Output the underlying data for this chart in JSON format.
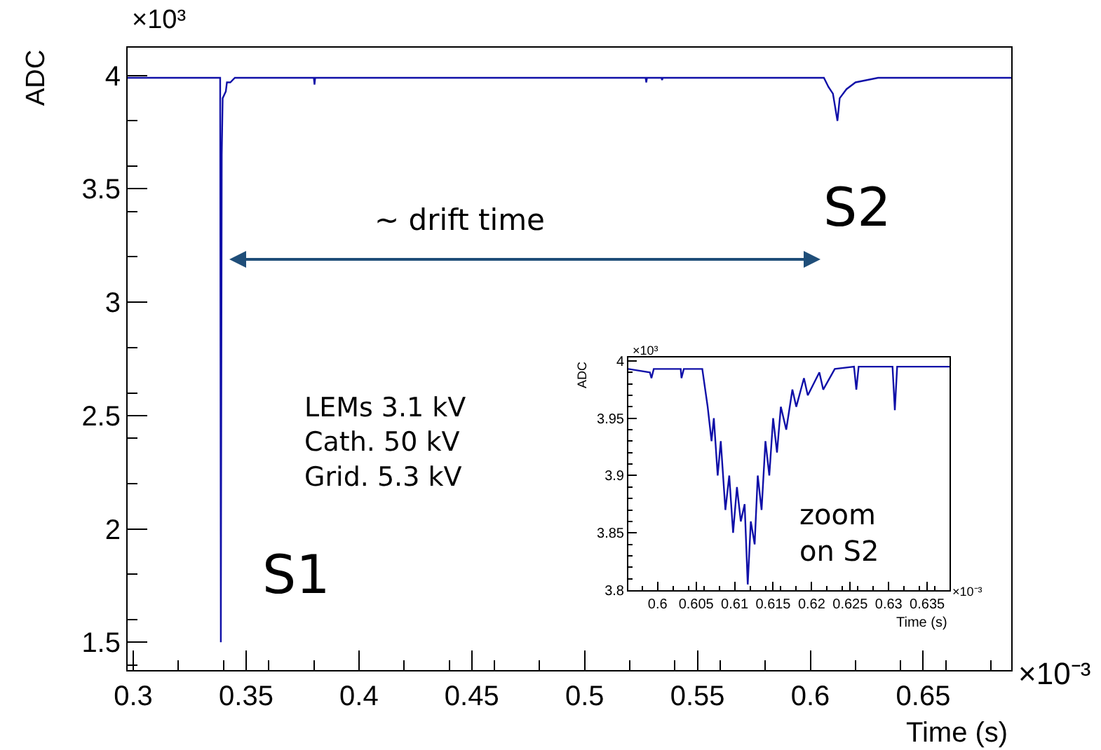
{
  "chart_data": [
    {
      "type": "line",
      "xlabel": "Time (s)",
      "ylabel": "ADC",
      "x": [
        0.2975,
        0.3385,
        0.3388,
        0.3392,
        0.3396,
        0.341,
        0.3415,
        0.343,
        0.345,
        0.38,
        0.3803,
        0.3806,
        0.527,
        0.5273,
        0.5276,
        0.534,
        0.5343,
        0.5346,
        0.606,
        0.608,
        0.61,
        0.612,
        0.613,
        0.616,
        0.62,
        0.625,
        0.63,
        0.689
      ],
      "series": [
        {
          "color": "#1010a8",
          "values": [
            3.99,
            3.99,
            1.5,
            3.65,
            3.9,
            3.93,
            3.97,
            3.97,
            3.99,
            3.99,
            3.96,
            3.99,
            3.99,
            3.97,
            3.99,
            3.99,
            3.98,
            3.99,
            3.99,
            3.95,
            3.92,
            3.8,
            3.9,
            3.94,
            3.97,
            3.98,
            3.99,
            3.99
          ]
        }
      ],
      "xlim": [
        0.2975,
        0.689
      ],
      "xticks": [
        0.3,
        0.35,
        0.4,
        0.45,
        0.5,
        0.55,
        0.6,
        0.65
      ],
      "ylim": [
        1.377,
        4.123
      ],
      "yticks": [
        1.5,
        2,
        2.5,
        3,
        3.5,
        4
      ],
      "marker": "none",
      "line_style": "solid",
      "annotations": [
        "×10³",
        "×10⁻³",
        "~ drift time",
        "S1",
        "S2",
        "LEMs 3.1 kV\nCath. 50 kV\nGrid. 5.3 kV"
      ]
    },
    {
      "type": "line",
      "xlabel": "Time (s)",
      "ylabel": "ADC",
      "x": [
        0.5962,
        0.599,
        0.5992,
        0.5995,
        0.603,
        0.6031,
        0.6034,
        0.6058,
        0.6065,
        0.607,
        0.6073,
        0.6078,
        0.6082,
        0.6088,
        0.6093,
        0.6098,
        0.6103,
        0.6108,
        0.6113,
        0.6117,
        0.6121,
        0.6126,
        0.613,
        0.6135,
        0.614,
        0.6145,
        0.615,
        0.6155,
        0.616,
        0.6167,
        0.6175,
        0.618,
        0.619,
        0.6195,
        0.621,
        0.6215,
        0.623,
        0.6255,
        0.6258,
        0.6261,
        0.6305,
        0.6308,
        0.6311,
        0.6379
      ],
      "series": [
        {
          "color": "#1010a8",
          "values": [
            3.993,
            3.99,
            3.985,
            3.993,
            3.993,
            3.985,
            3.993,
            3.993,
            3.96,
            3.93,
            3.95,
            3.9,
            3.93,
            3.87,
            3.9,
            3.85,
            3.89,
            3.86,
            3.875,
            3.805,
            3.86,
            3.84,
            3.9,
            3.87,
            3.93,
            3.9,
            3.95,
            3.92,
            3.96,
            3.94,
            3.975,
            3.96,
            3.985,
            3.97,
            3.99,
            3.975,
            3.993,
            3.995,
            3.975,
            3.995,
            3.995,
            3.957,
            3.995,
            3.995
          ]
        }
      ],
      "xlim": [
        0.5962,
        0.6379
      ],
      "xticks": [
        0.6,
        0.605,
        0.61,
        0.615,
        0.62,
        0.625,
        0.63,
        0.635
      ],
      "ylim": [
        3.8,
        4.003
      ],
      "yticks": [
        3.8,
        3.85,
        3.9,
        3.95,
        4
      ],
      "marker": "none",
      "line_style": "solid",
      "annotations": [
        "×10³",
        "×10⁻³",
        "zoom\non S2"
      ]
    }
  ]
}
